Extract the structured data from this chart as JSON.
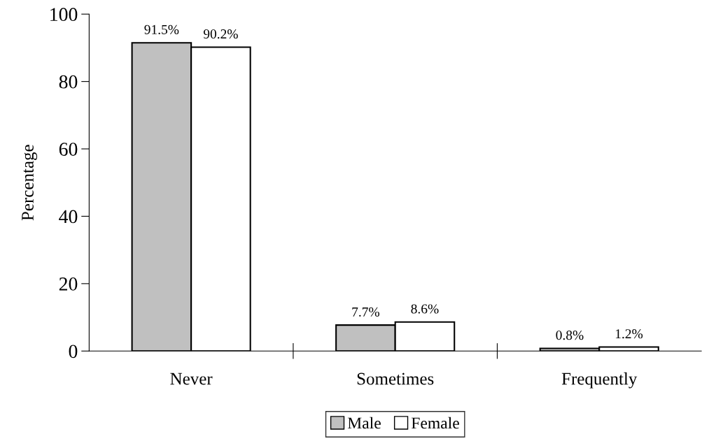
{
  "chart_data": {
    "type": "bar",
    "ylabel": "Percentage",
    "categories": [
      "Never",
      "Sometimes",
      "Frequently"
    ],
    "series": [
      {
        "name": "Male",
        "color": "#c0c0c0",
        "values": [
          91.5,
          7.7,
          0.8
        ],
        "value_labels": [
          "91.5%",
          "7.7%",
          "0.8%"
        ]
      },
      {
        "name": "Female",
        "color": "#ffffff",
        "values": [
          90.2,
          8.6,
          1.2
        ],
        "value_labels": [
          "90.2%",
          "8.6%",
          "1.2%"
        ]
      }
    ],
    "ylim": [
      0,
      100
    ],
    "yticks": [
      0,
      20,
      40,
      60,
      80,
      100
    ],
    "grid": false,
    "legend": "bottom"
  }
}
